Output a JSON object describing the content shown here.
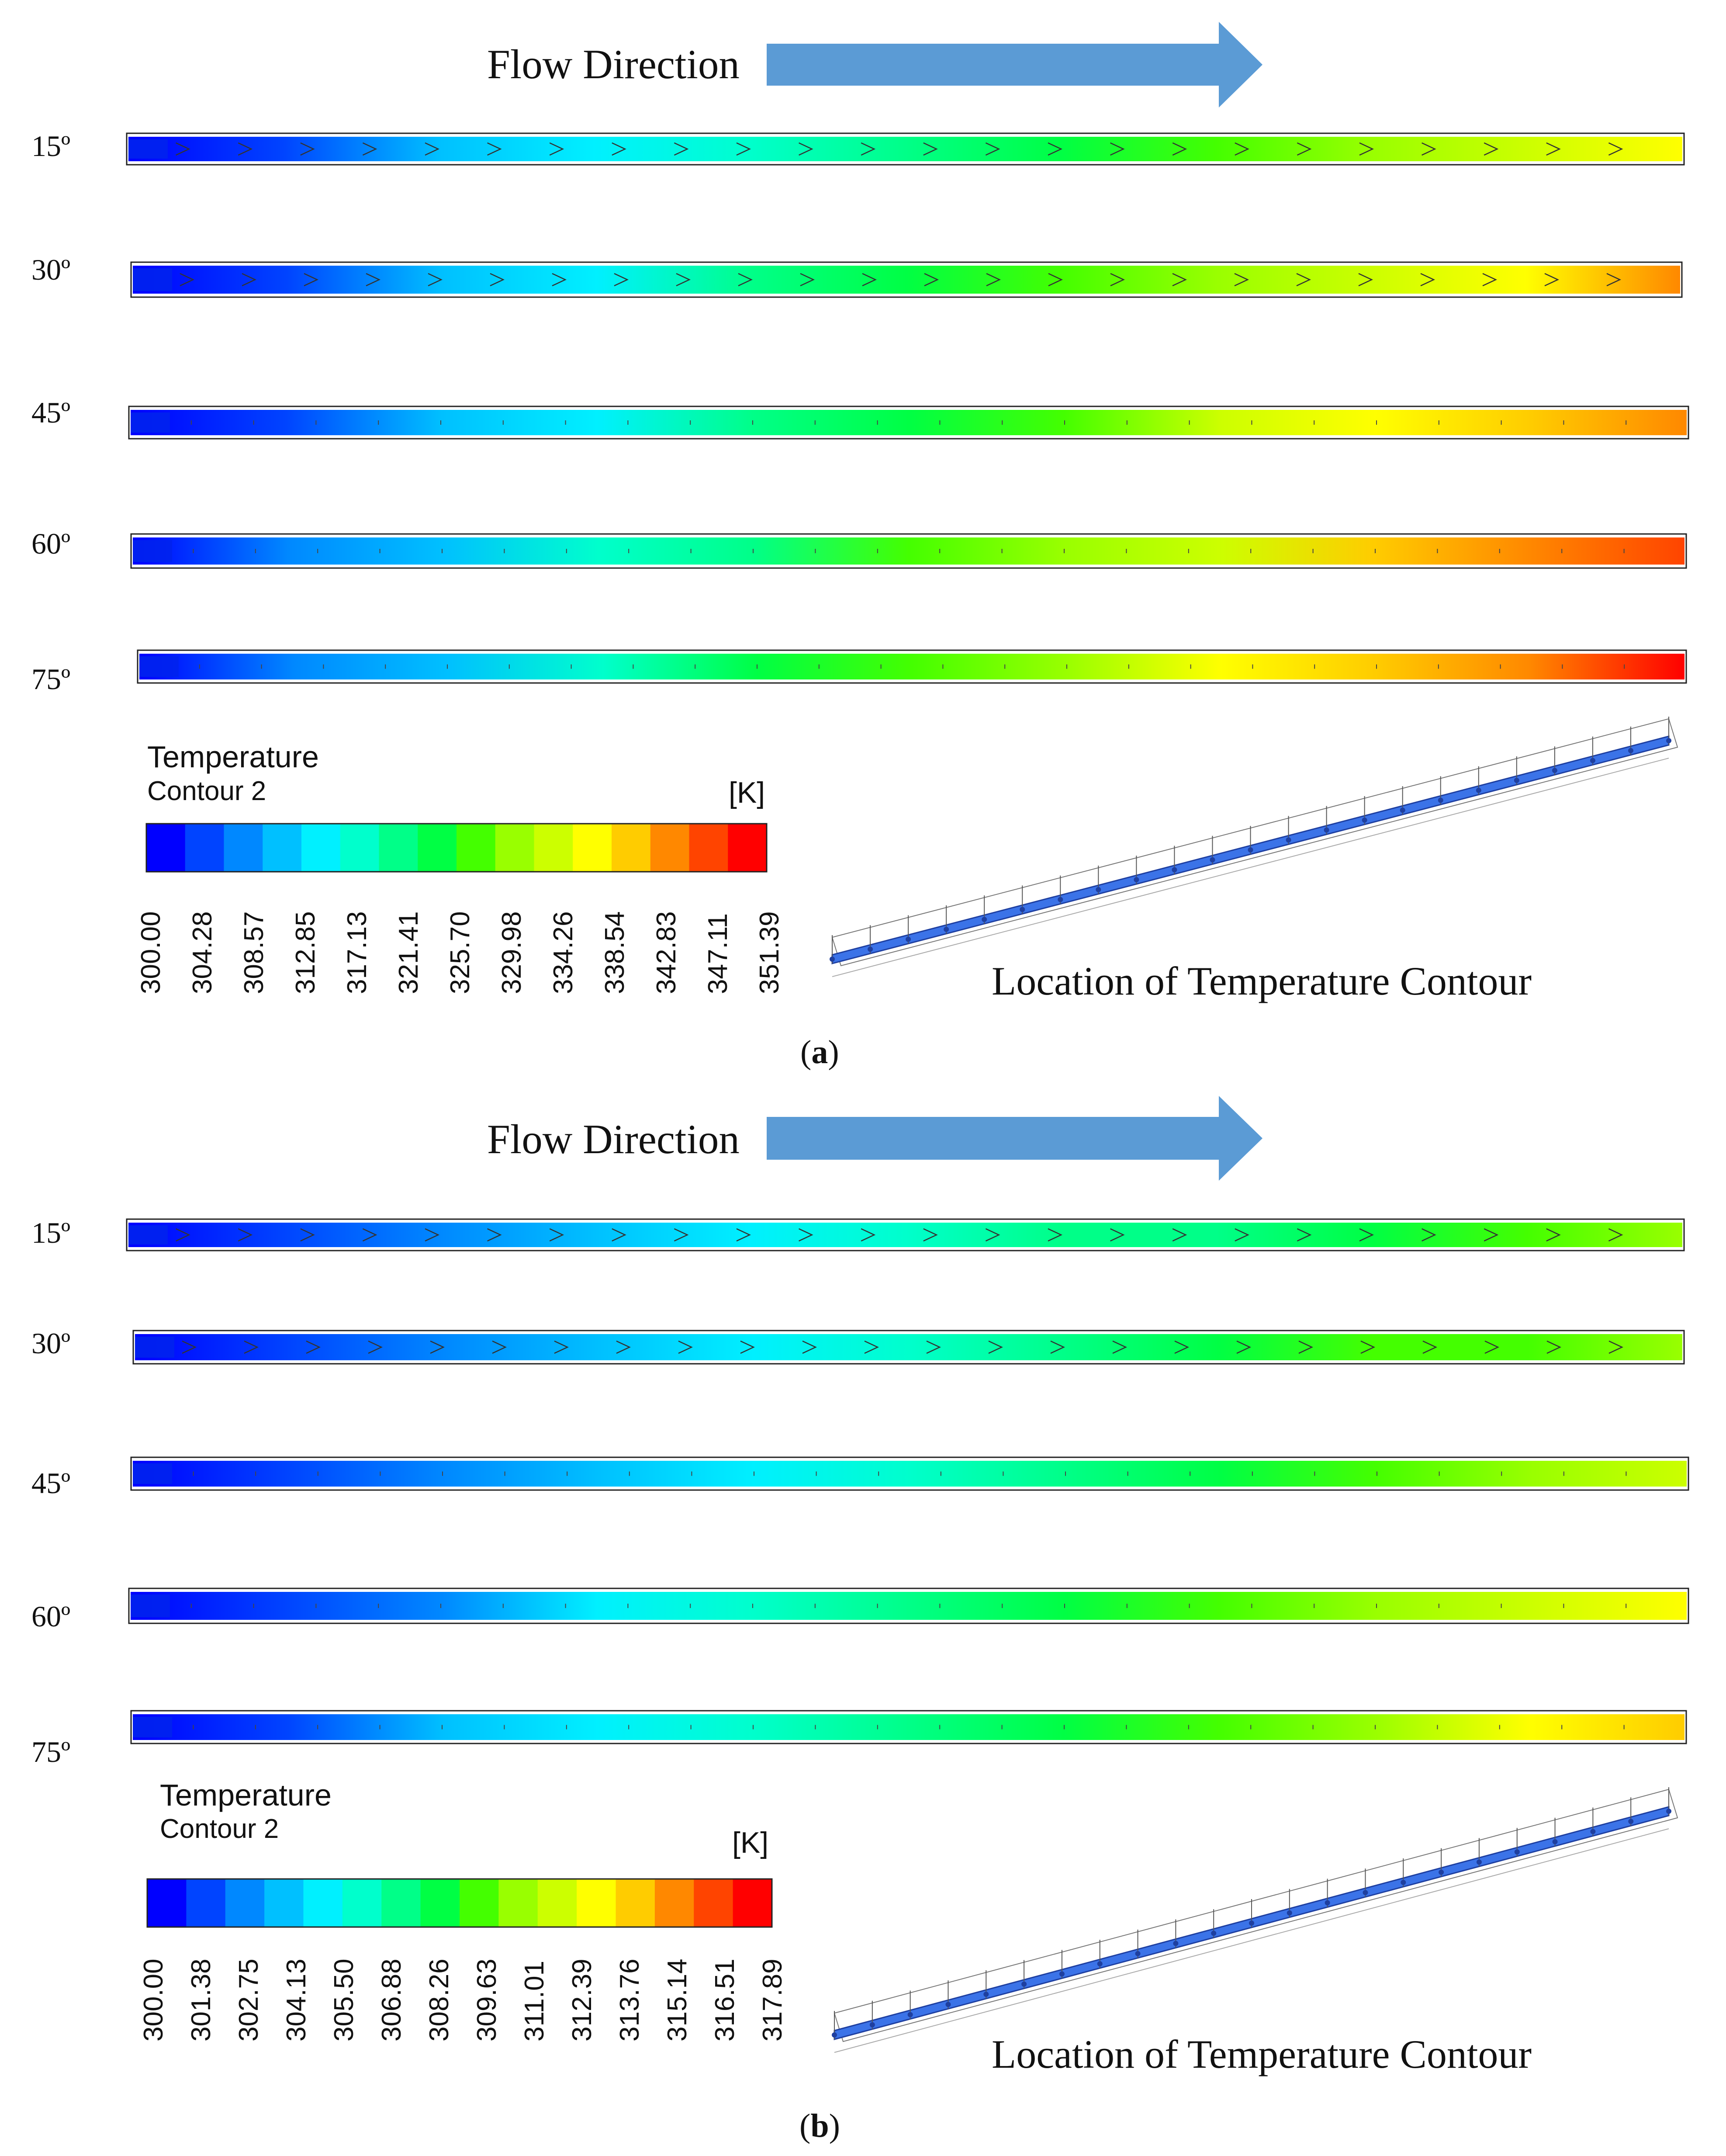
{
  "panels": [
    {
      "id": "a",
      "flow_label": "Flow Direction",
      "angles": [
        "15º",
        "30º",
        "45º",
        "60º",
        "75º"
      ],
      "legend": {
        "title": "Temperature",
        "subtitle": "Contour 2",
        "unit": "[K]",
        "ticks": [
          "300.00",
          "304.28",
          "308.57",
          "312.85",
          "317.13",
          "321.41",
          "325.70",
          "329.98",
          "334.26",
          "338.54",
          "342.83",
          "347.11",
          "351.39"
        ]
      },
      "tube_end_temps_K": [
        338,
        342,
        344,
        347,
        349
      ],
      "location_label": "Location of Temperature Contour",
      "caption_letter": "a"
    },
    {
      "id": "b",
      "flow_label": "Flow Direction",
      "angles": [
        "15º",
        "30º",
        "45º",
        "60º",
        "75º"
      ],
      "legend": {
        "title": "Temperature",
        "subtitle": "Contour 2",
        "unit": "[K]",
        "ticks": [
          "300.00",
          "301.38",
          "302.75",
          "304.13",
          "305.50",
          "306.88",
          "308.26",
          "309.63",
          "311.01",
          "312.39",
          "313.76",
          "315.14",
          "316.51",
          "317.89"
        ]
      },
      "tube_end_temps_K": [
        310.5,
        311,
        311.8,
        313,
        313.5
      ],
      "location_label": "Location of Temperature Contour",
      "caption_letter": "b"
    }
  ],
  "colors": {
    "arrow": "#5b9bd5",
    "colormap": [
      "#0000ff",
      "#0044ff",
      "#0088ff",
      "#00c0ff",
      "#00f0ff",
      "#00ffcc",
      "#00ff88",
      "#00ff44",
      "#44ff00",
      "#99ff00",
      "#ccff00",
      "#ffff00",
      "#ffcc00",
      "#ff8800",
      "#ff4400",
      "#ff0000"
    ]
  }
}
